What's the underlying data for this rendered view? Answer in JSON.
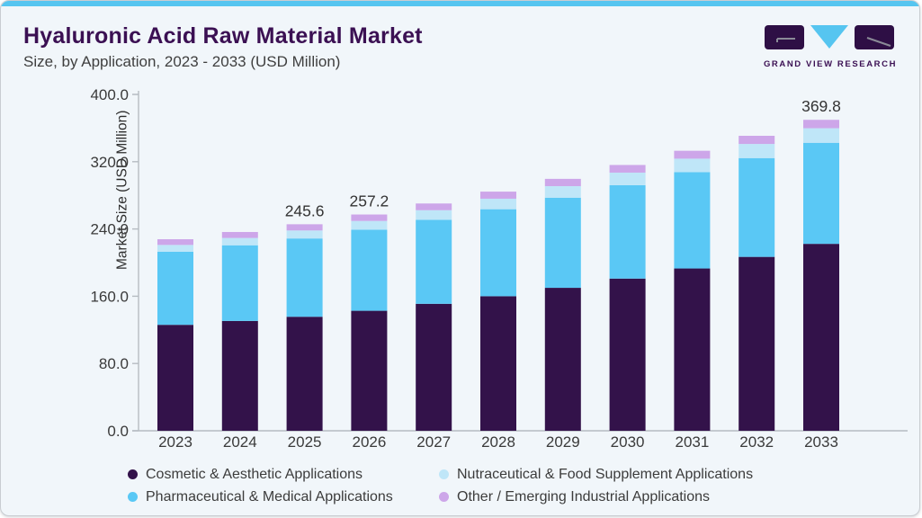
{
  "header": {
    "title": "Hyaluronic Acid Raw Material Market",
    "subtitle": "Size, by Application, 2023 - 2033 (USD Million)",
    "brand": "GRAND VIEW RESEARCH"
  },
  "colors": {
    "accent_strip": "#56c5f0",
    "title_purple": "#3b1053",
    "card_bg": "#f1f6fa",
    "axis_line": "#b6bcc2",
    "tick_text": "#3a3a3a",
    "data_label_text": "#333333"
  },
  "chart_data": {
    "type": "bar",
    "stacked": true,
    "title": "Hyaluronic Acid Raw Material Market Size, by Application, 2023 - 2033 (USD Million)",
    "xlabel": "",
    "ylabel": "Market Size (USD Million)",
    "ylim": [
      0,
      400
    ],
    "ytick_labels": [
      "0.0",
      "80.0",
      "160.0",
      "240.0",
      "320.0",
      "400.0"
    ],
    "yticks": [
      0,
      80,
      160,
      240,
      320,
      400
    ],
    "grid": false,
    "legend_position": "bottom",
    "categories": [
      "2023",
      "2024",
      "2025",
      "2026",
      "2027",
      "2028",
      "2029",
      "2030",
      "2031",
      "2032",
      "2033"
    ],
    "series": [
      {
        "key": "cosmetic",
        "name": "Cosmetic & Aesthetic Applications",
        "color": "#33124a",
        "values": [
          126.0,
          130.6,
          135.6,
          142.7,
          151.0,
          160.0,
          170.0,
          181.0,
          193.0,
          206.8,
          222.3
        ]
      },
      {
        "key": "pharmaceutical",
        "name": "Pharmaceutical & Medical Applications",
        "color": "#5ac8f5",
        "values": [
          87.0,
          90.0,
          93.1,
          96.4,
          99.9,
          103.5,
          107.2,
          111.0,
          114.5,
          117.5,
          120.2
        ]
      },
      {
        "key": "nutraceutical",
        "name": "Nutraceutical & Food Supplement Applications",
        "color": "#bfe6f8",
        "values": [
          8.0,
          8.7,
          9.5,
          10.4,
          11.4,
          12.5,
          13.7,
          15.0,
          16.1,
          16.8,
          17.3
        ]
      },
      {
        "key": "other",
        "name": "Other / Emerging Industrial Applications",
        "color": "#cda6e9",
        "values": [
          6.8,
          7.1,
          7.4,
          7.7,
          8.0,
          8.4,
          8.7,
          9.1,
          9.4,
          9.7,
          10.0
        ]
      }
    ],
    "totals": [
      227.8,
      236.4,
      245.6,
      257.2,
      270.3,
      284.4,
      299.6,
      316.1,
      333.0,
      350.8,
      369.8
    ],
    "bar_total_labels": {
      "2025": "245.6",
      "2026": "257.2",
      "2033": "369.8"
    },
    "legend_order": [
      0,
      2,
      1,
      3
    ]
  }
}
